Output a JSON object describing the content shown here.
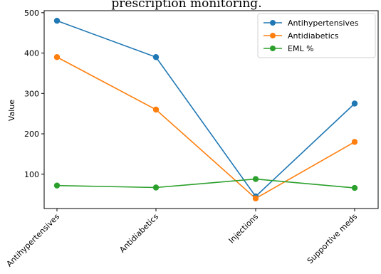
{
  "chart_data": {
    "type": "line",
    "title": "prescription monitoring.",
    "xlabel": "",
    "ylabel": "Value",
    "categories": [
      "Antihypertensives",
      "Antidiabetics",
      "Injections",
      "Supportive meds"
    ],
    "ylim": [
      15,
      505
    ],
    "yticks": [
      100,
      200,
      300,
      400,
      500
    ],
    "grid": false,
    "legend_position": "top-right",
    "series": [
      {
        "name": "Antihypertensives",
        "color": "#1f77b4",
        "values": [
          480,
          390,
          45,
          275
        ]
      },
      {
        "name": "Antidiabetics",
        "color": "#ff7f0e",
        "values": [
          390,
          260,
          40,
          180
        ]
      },
      {
        "name": "EML %",
        "color": "#2ca02c",
        "values": [
          72,
          67,
          88,
          66
        ]
      }
    ]
  }
}
